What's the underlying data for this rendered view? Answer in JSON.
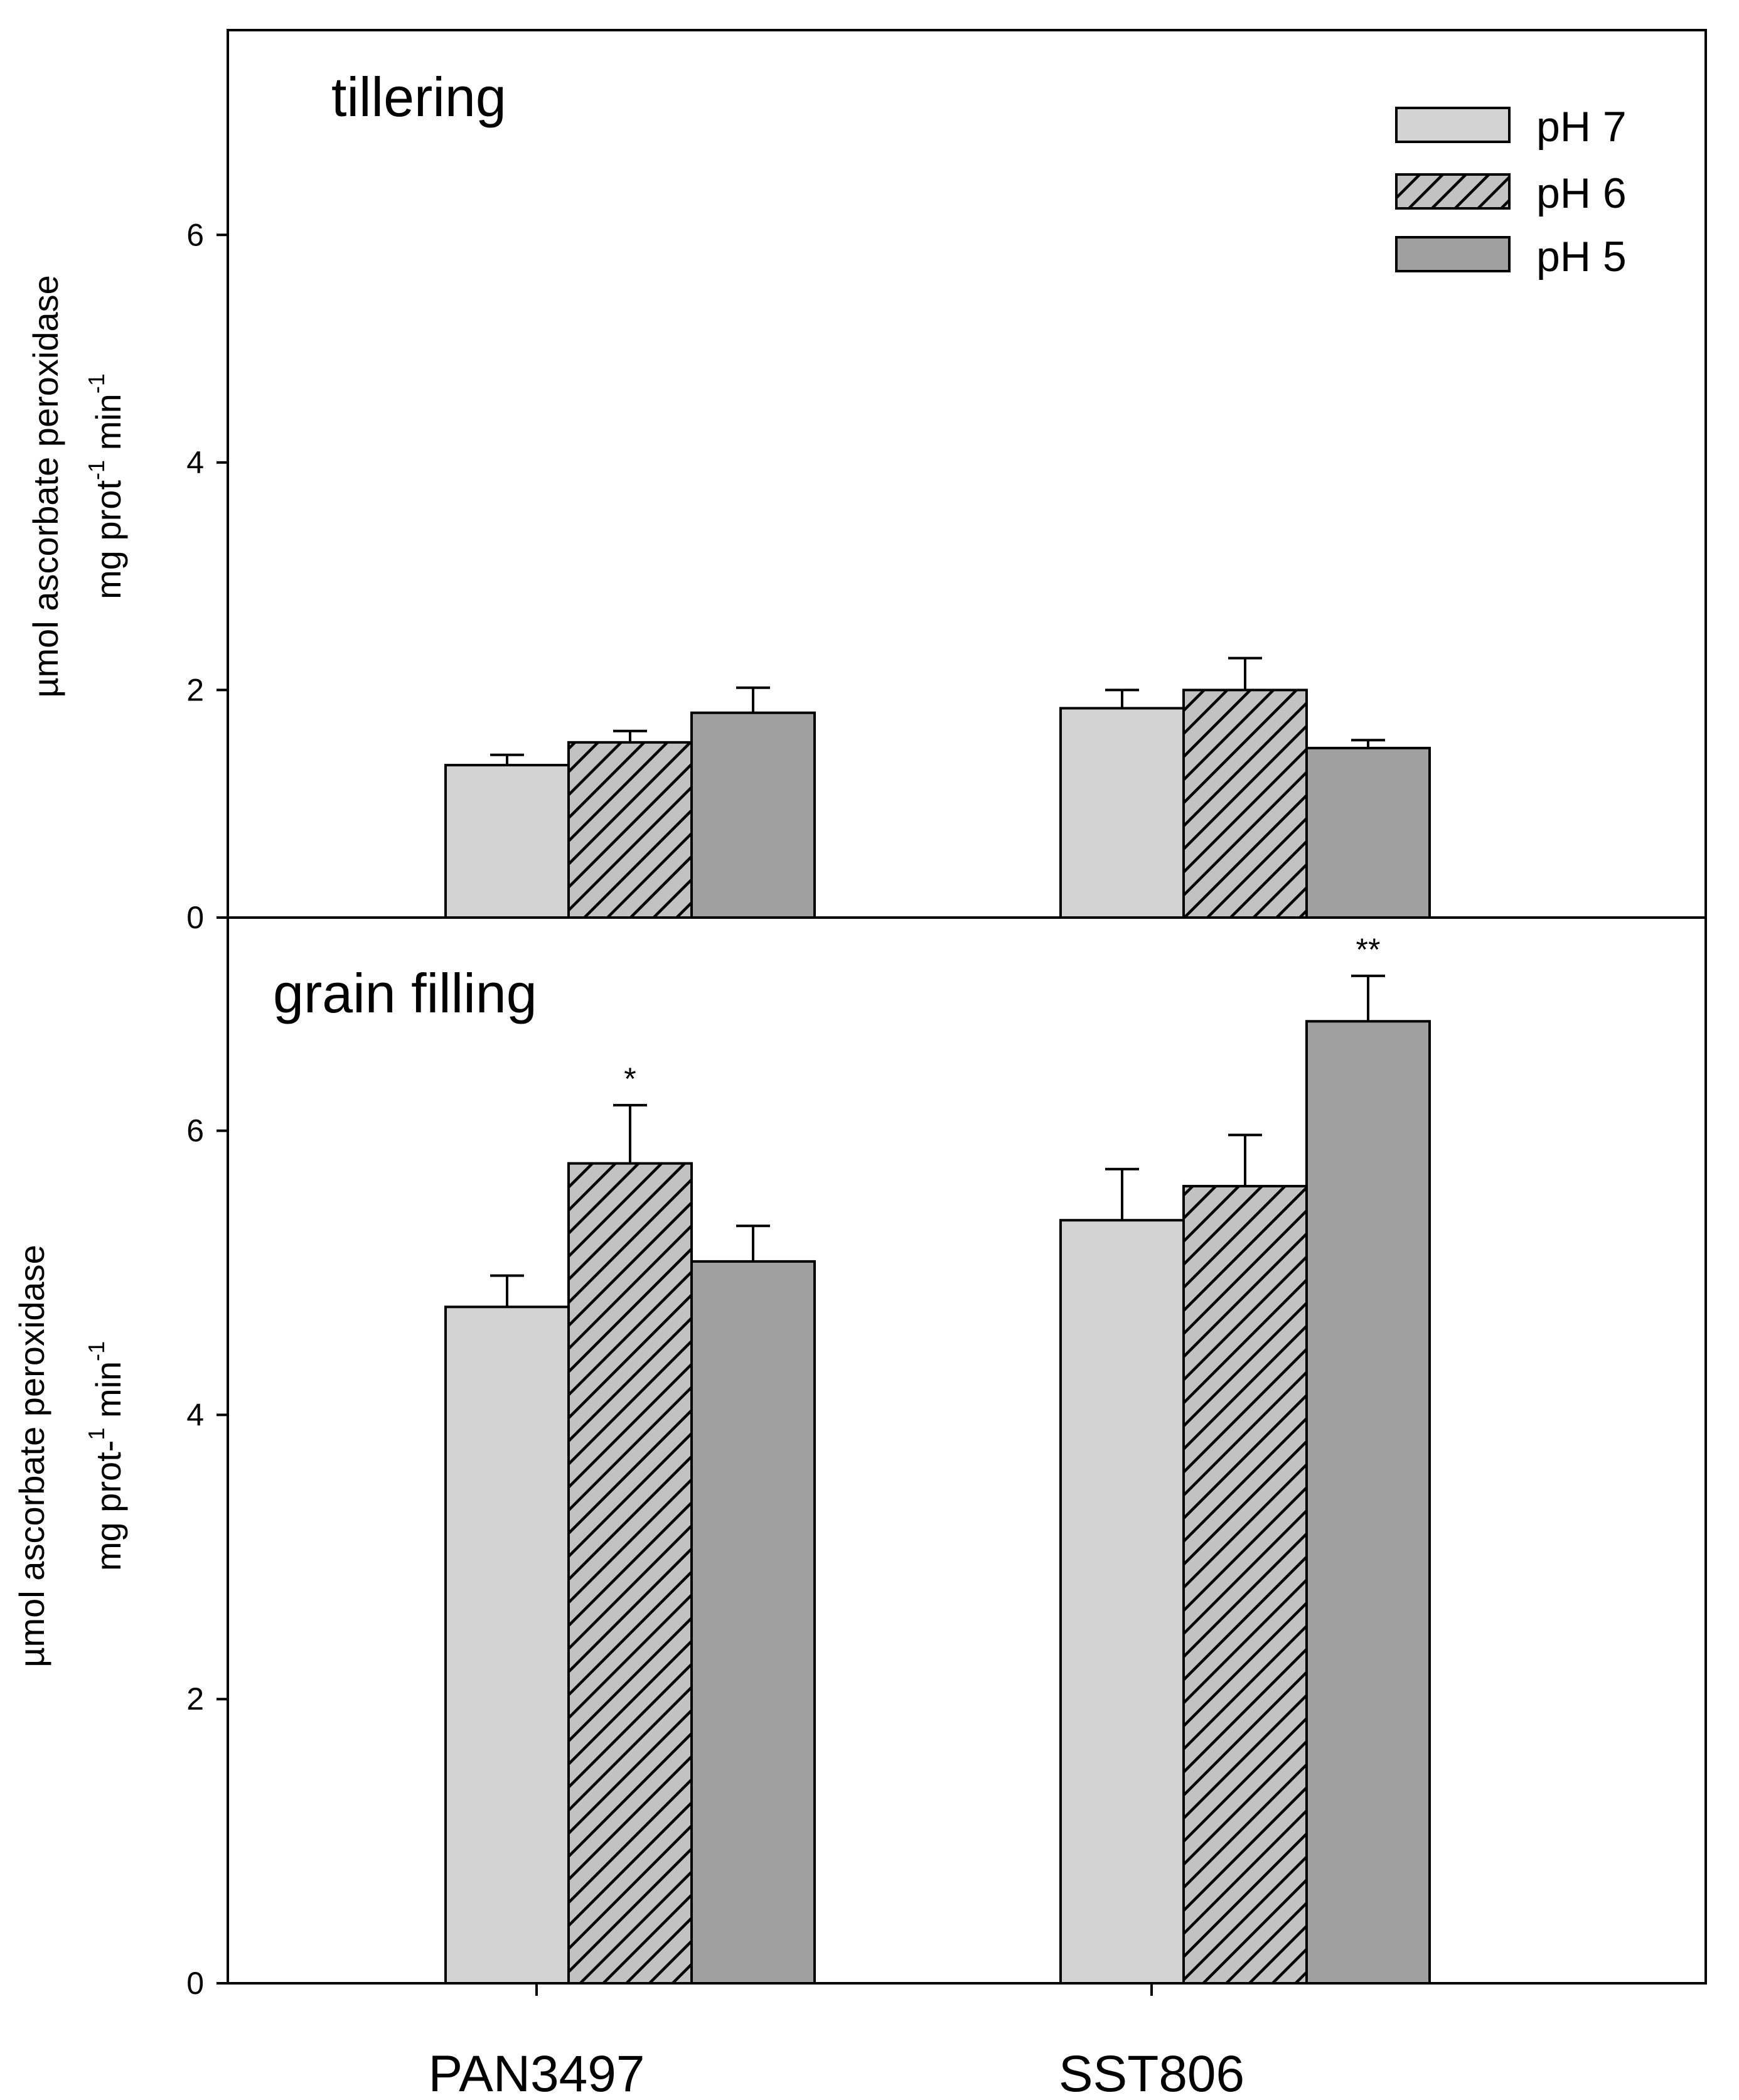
{
  "chart_data": {
    "type": "bar",
    "categories": [
      "PAN3497",
      "SST806"
    ],
    "colors": {
      "pH 7": "#d3d3d3",
      "pH 6": "#c2c2c2",
      "pH 5": "#a0a0a0"
    },
    "legend": [
      "pH 7",
      "pH 6",
      "pH 5"
    ],
    "legend_position": "top-right",
    "ylabel": {
      "line1": "µmol ascorbate peroxidase",
      "top_line2_pre": "mg prot",
      "top_line2_sup1": "-1",
      "top_line2_mid": " min",
      "top_line2_sup2": "-1",
      "bottom_line2_pre": "mg prot-",
      "bottom_line2_sup1": "1",
      "bottom_line2_mid": " min",
      "bottom_line2_sup2": "-1"
    },
    "panels": [
      {
        "title": "tillering",
        "ylim": [
          0,
          7.8
        ],
        "yticks": [
          "0",
          "2",
          "4",
          "6"
        ],
        "series": [
          {
            "name": "pH 7",
            "pattern": "solid",
            "values": [
              1.34,
              1.84
            ],
            "errors": [
              0.09,
              0.16
            ],
            "sig": [
              "",
              ""
            ]
          },
          {
            "name": "pH 6",
            "pattern": "hatch",
            "values": [
              1.54,
              2.0
            ],
            "errors": [
              0.1,
              0.28
            ],
            "sig": [
              "",
              ""
            ]
          },
          {
            "name": "pH 5",
            "pattern": "solid",
            "values": [
              1.8,
              1.49
            ],
            "errors": [
              0.22,
              0.07
            ],
            "sig": [
              "",
              ""
            ]
          }
        ]
      },
      {
        "title": "grain filling",
        "ylim": [
          0,
          7.5
        ],
        "yticks": [
          "0",
          "2",
          "4",
          "6"
        ],
        "series": [
          {
            "name": "pH 7",
            "pattern": "solid",
            "values": [
              4.76,
              5.37
            ],
            "errors": [
              0.22,
              0.36
            ],
            "sig": [
              "",
              ""
            ]
          },
          {
            "name": "pH 6",
            "pattern": "hatch",
            "values": [
              5.77,
              5.61
            ],
            "errors": [
              0.41,
              0.36
            ],
            "sig": [
              "*",
              ""
            ]
          },
          {
            "name": "pH 5",
            "pattern": "solid",
            "values": [
              5.08,
              6.77
            ],
            "errors": [
              0.25,
              0.32
            ],
            "sig": [
              "",
              "**"
            ]
          }
        ]
      }
    ]
  }
}
